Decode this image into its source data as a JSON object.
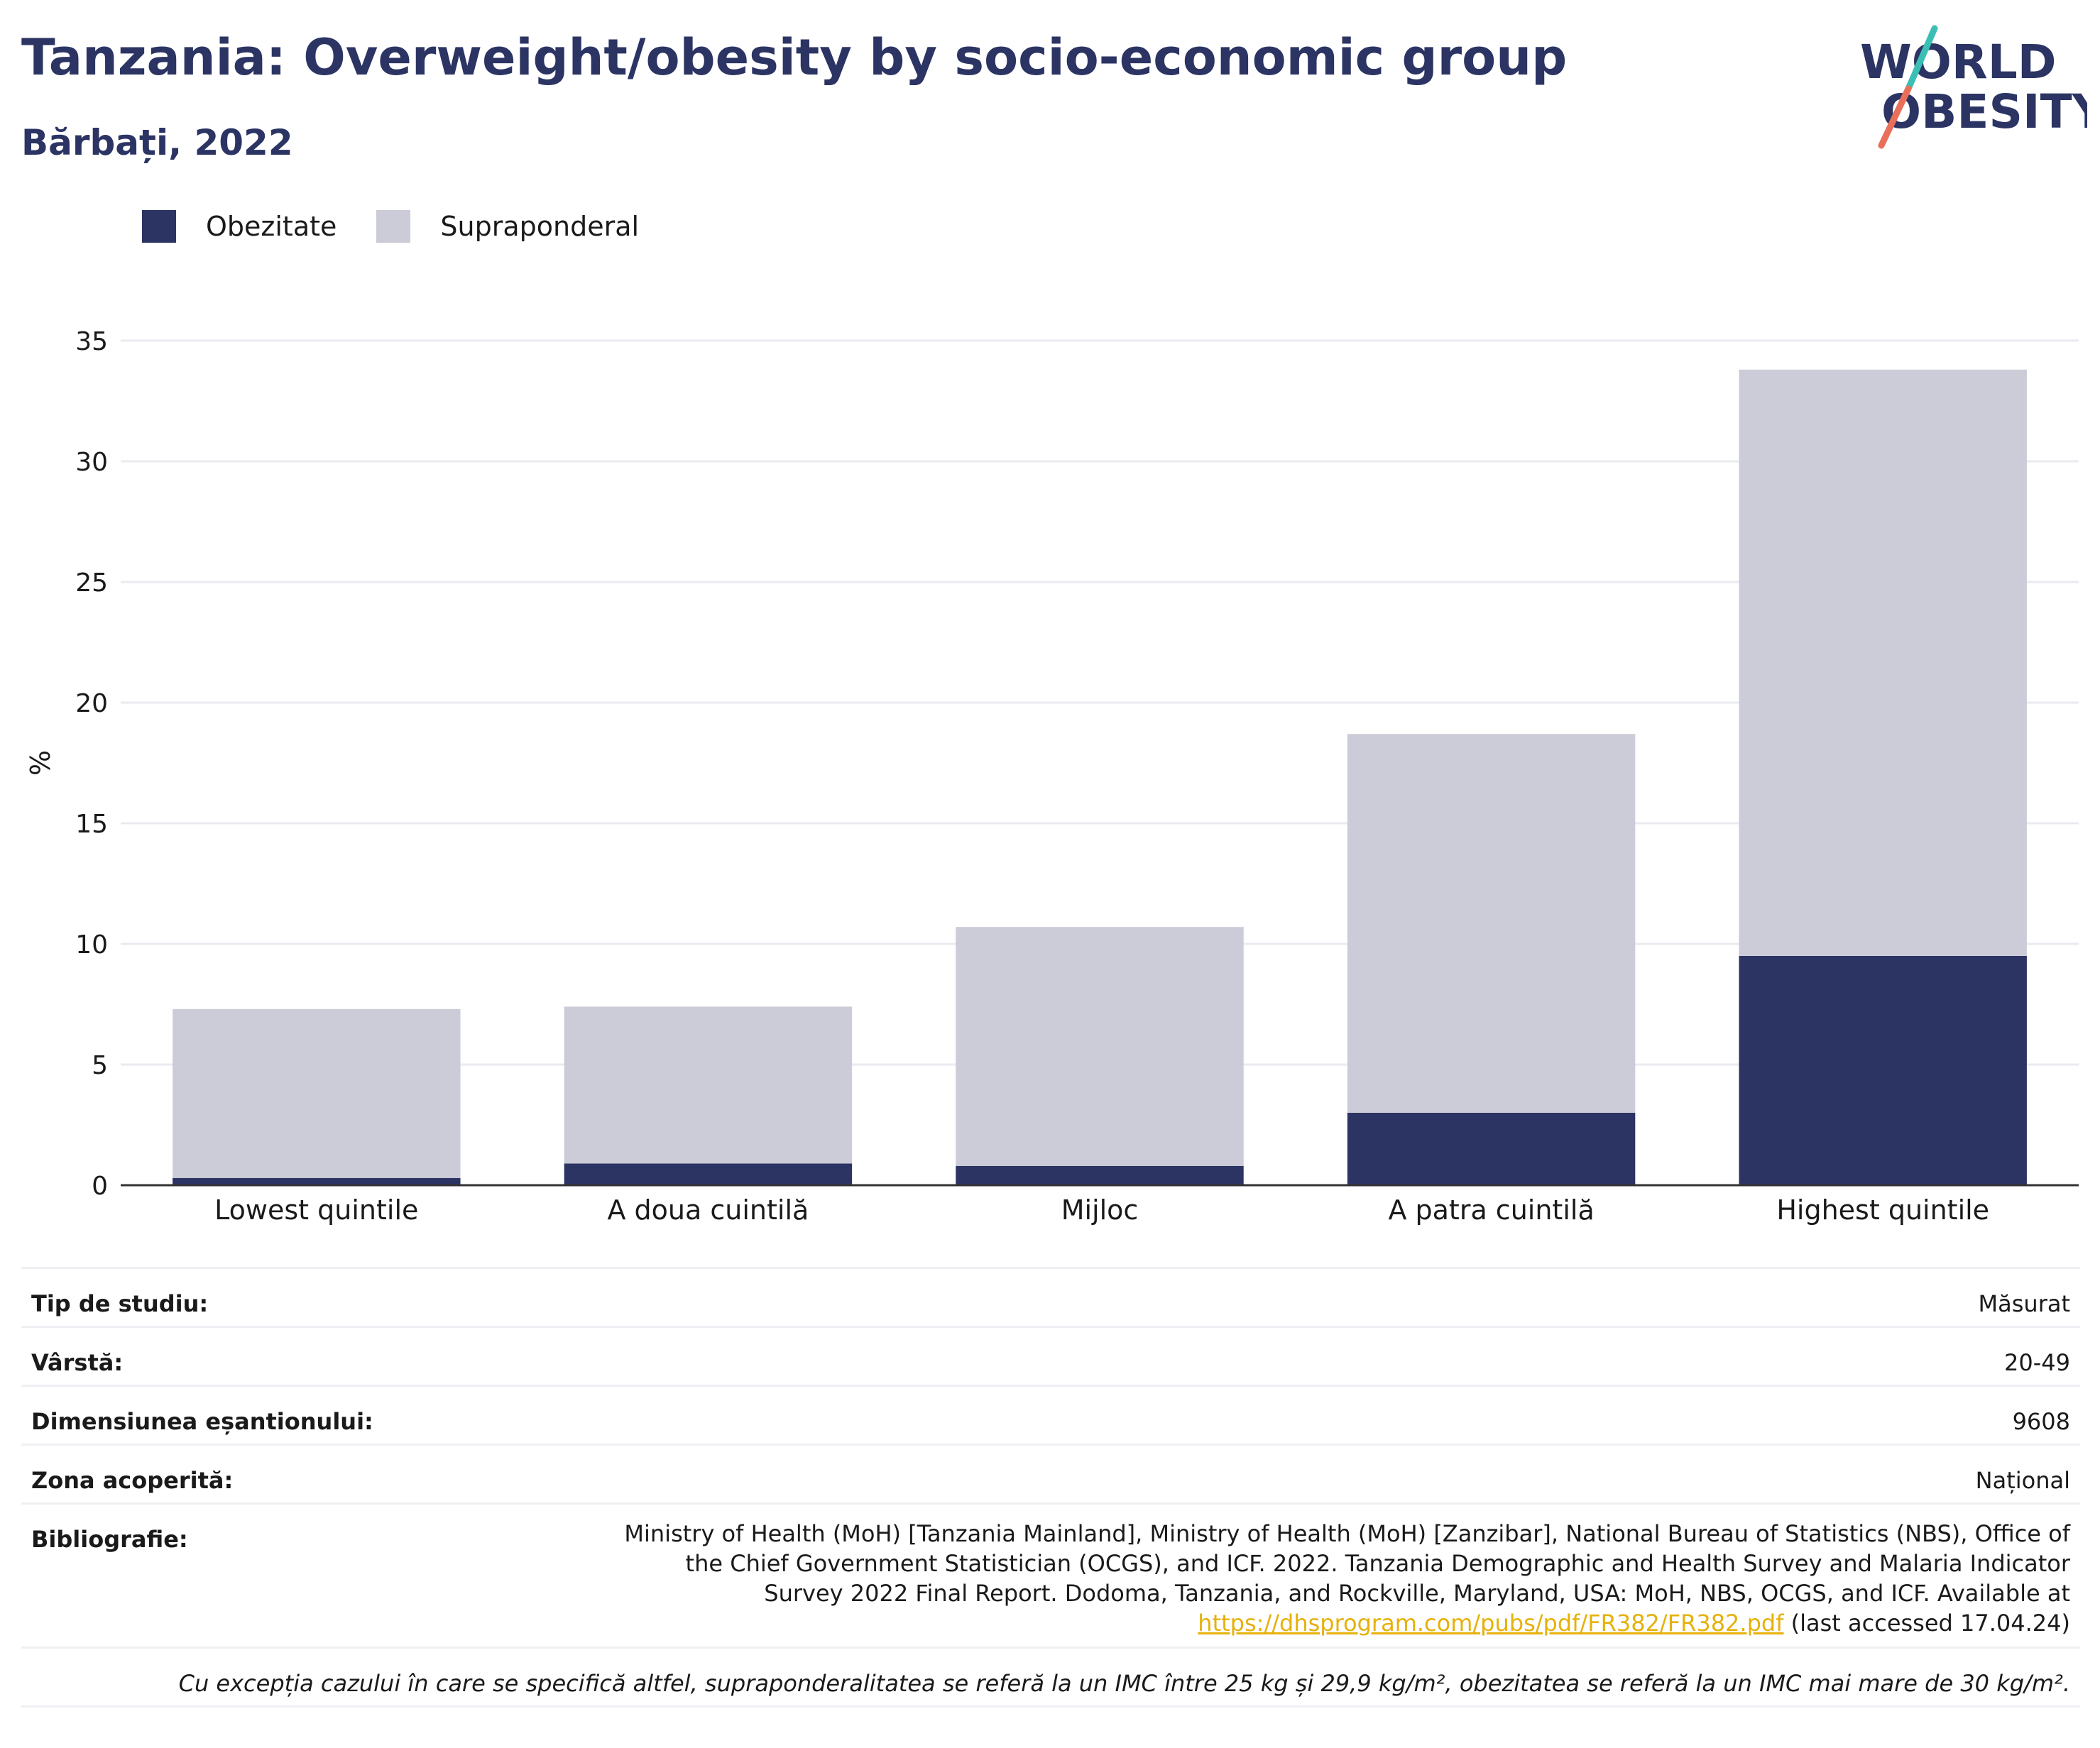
{
  "header": {
    "title": "Tanzania: Overweight/obesity by socio-economic group",
    "subtitle": "Bărbați, 2022"
  },
  "logo": {
    "line1": "WORLD",
    "line2": "OBESITY"
  },
  "colors": {
    "obesity": "#2b3463",
    "overweight": "#cbccd7",
    "title": "#2b3463",
    "link": "#e6b10a",
    "logo_slash_teal": "#3bbfb4",
    "logo_slash_red": "#e8705a"
  },
  "legend": {
    "items": [
      "Obezitate",
      "Supraponderal"
    ]
  },
  "chart_data": {
    "type": "bar",
    "stacked": true,
    "categories": [
      "Lowest quintile",
      "A doua cuintilă",
      "Mijloc",
      "A patra cuintilă",
      "Highest quintile"
    ],
    "series": [
      {
        "name": "Obezitate",
        "values": [
          0.3,
          0.9,
          0.8,
          3.0,
          9.5
        ]
      },
      {
        "name": "Supraponderal",
        "values": [
          7.0,
          6.5,
          9.9,
          15.7,
          24.3
        ]
      }
    ],
    "ylabel": "%",
    "yticks": [
      0,
      5,
      10,
      15,
      20,
      25,
      30,
      35
    ],
    "ylim": [
      0,
      35
    ],
    "grid": true
  },
  "meta": {
    "study_type_label": "Tip de studiu:",
    "study_type": "Măsurat",
    "age_label": "Vârstă:",
    "age": "20-49",
    "sample_label": "Dimensiunea eșantionului:",
    "sample": "9608",
    "area_label": "Zona acoperită:",
    "area": "Național",
    "bib_label": "Bibliografie:",
    "bib_text": "Ministry of Health (MoH) [Tanzania Mainland], Ministry of Health (MoH) [Zanzibar], National Bureau of Statistics (NBS), Office of the Chief Government Statistician (OCGS), and ICF. 2022. Tanzania Demographic and Health Survey and Malaria Indicator Survey 2022 Final Report. Dodoma, Tanzania, and Rockville, Maryland, USA: MoH, NBS, OCGS, and ICF. Available at",
    "bib_link": "https://dhsprogram.com/pubs/pdf/FR382/FR382.pdf",
    "bib_suffix": "(last accessed 17.04.24)",
    "note": "Cu excepția cazului în care se specifică altfel, supraponderalitatea se referă la un IMC între 25 kg și 29,9 kg/m², obezitatea se referă la un IMC mai mare de 30 kg/m²."
  }
}
